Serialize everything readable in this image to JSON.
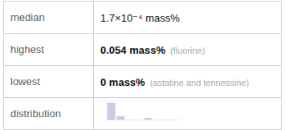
{
  "chart_data": {
    "type": "bar",
    "annotations": [
      [
        "median",
        "1.7×10⁻⁴ mass%"
      ],
      [
        "highest",
        "0.054 mass%",
        "(fluorine)"
      ],
      [
        "lowest",
        "0 mass%",
        "(astatine and tennessine)"
      ],
      [
        "distribution"
      ]
    ],
    "categories": [
      null,
      null,
      null,
      null,
      null,
      null,
      null,
      null
    ],
    "values": [
      10,
      2,
      0,
      0,
      1,
      0,
      0,
      0
    ],
    "color": "#c8cce0",
    "ylim": [
      0,
      10.5
    ],
    "grid": false,
    "tick_labels": false
  }
}
